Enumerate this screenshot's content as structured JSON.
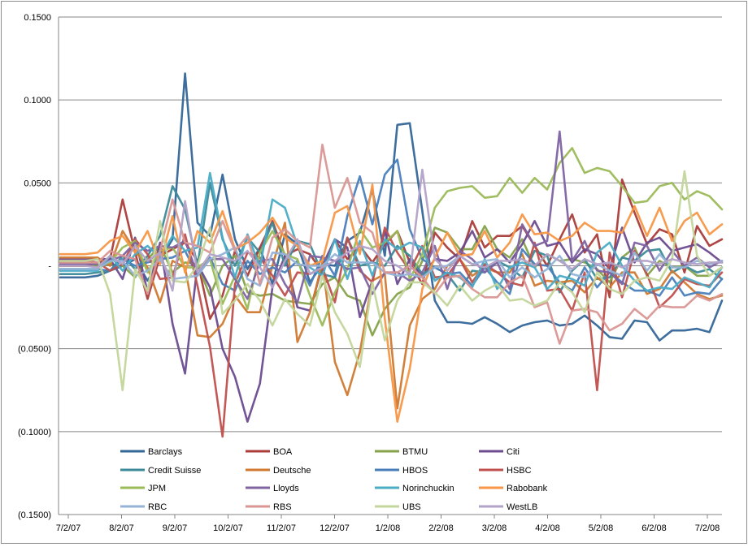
{
  "chart_data": {
    "type": "line",
    "title": "",
    "xlabel": "",
    "ylabel": "",
    "ylim": [
      -0.15,
      0.15
    ],
    "ytick_values": [
      0.15,
      0.1,
      0.05,
      0,
      -0.05,
      -0.1,
      -0.15
    ],
    "ytick_labels": [
      "0.1500",
      "0.1000",
      "0.0500",
      "-",
      "(0.0500)",
      "(0.1000)",
      "(0.1500)"
    ],
    "x_start": "7/2/07",
    "x_end": "7/28/08",
    "xtick_labels": [
      "7/2/07",
      "8/2/07",
      "9/2/07",
      "10/2/07",
      "11/2/07",
      "12/2/07",
      "1/2/08",
      "2/2/08",
      "3/2/08",
      "4/2/08",
      "5/2/08",
      "6/2/08",
      "7/2/08"
    ],
    "grid": "horizontal",
    "legend_placement": "bottom",
    "series": [
      {
        "name": "Barclays",
        "color": "#336699",
        "values": [
          -0.007,
          -0.007,
          -0.007,
          -0.006,
          -0.003,
          0.0,
          0.004,
          -0.009,
          0.004,
          0.016,
          0.116,
          0.026,
          0.018,
          0.055,
          0.016,
          -0.002,
          0.011,
          -0.011,
          0.019,
          0.013,
          -0.01,
          0.001,
          0.0,
          0.015,
          0.02,
          0.046,
          0.006,
          0.085,
          0.086,
          0.033,
          -0.021,
          -0.034,
          -0.034,
          -0.035,
          -0.031,
          -0.035,
          -0.04,
          -0.036,
          -0.034,
          -0.033,
          -0.036,
          -0.035,
          -0.03,
          -0.036,
          -0.043,
          -0.044,
          -0.033,
          -0.034,
          -0.045,
          -0.039,
          -0.039,
          -0.038,
          -0.04,
          -0.021
        ]
      },
      {
        "name": "BOA",
        "color": "#aa3d3a",
        "values": [
          0.003,
          0.003,
          0.003,
          0.002,
          0.004,
          0.04,
          0.008,
          -0.02,
          0.006,
          0.01,
          0.014,
          0.003,
          -0.032,
          -0.018,
          0.009,
          -0.006,
          0.011,
          0.027,
          0.006,
          0.01,
          0.007,
          -0.004,
          0.016,
          0.004,
          0.012,
          0.002,
          0.013,
          0.021,
          0.002,
          -0.011,
          0.02,
          0.011,
          0.004,
          0.027,
          0.011,
          0.018,
          0.018,
          0.024,
          0.012,
          0.0,
          0.016,
          0.031,
          0.008,
          0.019,
          -0.019,
          0.052,
          0.032,
          0.013,
          0.022,
          0.019,
          -0.004,
          0.024,
          0.012,
          0.016
        ]
      },
      {
        "name": "BTMU",
        "color": "#85a24a",
        "values": [
          0.0,
          0.0,
          0.0,
          0.0,
          0.001,
          0.0,
          -0.007,
          0.004,
          0.012,
          -0.004,
          0.002,
          0.001,
          -0.018,
          0.0,
          0.006,
          -0.016,
          -0.018,
          -0.017,
          -0.021,
          -0.022,
          -0.023,
          -0.011,
          -0.007,
          -0.018,
          -0.021,
          -0.042,
          -0.026,
          -0.017,
          -0.013,
          0.003,
          0.023,
          0.02,
          0.01,
          0.01,
          0.024,
          0.01,
          0.005,
          0.016,
          -0.001,
          0.007,
          0.003,
          0.004,
          0.002,
          -0.002,
          -0.01,
          0.005,
          0.011,
          -0.006,
          0.003,
          -0.001,
          0.0,
          -0.006,
          -0.006,
          -0.001
        ]
      },
      {
        "name": "Citi",
        "color": "#6c4b8f",
        "values": [
          0.004,
          0.004,
          0.004,
          0.004,
          0.004,
          -0.008,
          0.017,
          -0.016,
          0.014,
          -0.035,
          -0.065,
          0.001,
          -0.013,
          -0.05,
          -0.067,
          -0.094,
          -0.071,
          -0.013,
          0.006,
          -0.025,
          -0.027,
          0.0,
          0.016,
          0.011,
          -0.031,
          -0.009,
          0.021,
          -0.011,
          0.004,
          -0.007,
          0.004,
          0.003,
          0.008,
          0.021,
          0.005,
          0.01,
          0.002,
          0.013,
          0.027,
          0.012,
          0.014,
          0.002,
          0.01,
          0.007,
          -0.002,
          0.023,
          0.002,
          0.014,
          0.017,
          0.009,
          0.011,
          0.013,
          0.008,
          0.002
        ]
      },
      {
        "name": "Credit Suisse",
        "color": "#3d8b99",
        "values": [
          -0.005,
          -0.005,
          -0.005,
          -0.004,
          -0.003,
          0.006,
          -0.002,
          0.006,
          0.018,
          0.048,
          0.034,
          0.0,
          0.05,
          0.016,
          0.0,
          0.017,
          0.008,
          0.026,
          0.0,
          0.015,
          0.013,
          -0.005,
          -0.007,
          0.017,
          0.0,
          0.002,
          0.0,
          0.012,
          0.006,
          -0.005,
          -0.001,
          -0.005,
          -0.015,
          -0.003,
          -0.004,
          0.003,
          -0.001,
          -0.007,
          0.009,
          0.006,
          -0.016,
          -0.003,
          0.004,
          -0.008,
          -0.007,
          0.005,
          0.003,
          0.009,
          0.01,
          -0.004,
          0.0,
          -0.004,
          -0.002,
          -0.008
        ]
      },
      {
        "name": "Deutsche",
        "color": "#d07a31",
        "values": [
          0.005,
          0.005,
          0.005,
          0.005,
          0.0,
          0.021,
          0.009,
          -0.001,
          -0.022,
          0.003,
          -0.001,
          -0.042,
          -0.043,
          -0.035,
          -0.018,
          -0.028,
          -0.028,
          0.0,
          0.026,
          -0.046,
          -0.028,
          0.002,
          -0.058,
          -0.078,
          -0.052,
          -0.009,
          -0.005,
          -0.086,
          -0.036,
          -0.02,
          -0.014,
          0.0,
          0.004,
          -0.006,
          -0.001,
          -0.004,
          -0.004,
          0.007,
          -0.012,
          -0.009,
          -0.01,
          -0.009,
          -0.016,
          -0.007,
          -0.013,
          -0.004,
          -0.004,
          -0.017,
          -0.014,
          -0.003,
          -0.01,
          -0.017,
          -0.02,
          -0.018
        ]
      },
      {
        "name": "HBOS",
        "color": "#4a7ebb",
        "values": [
          -0.002,
          -0.002,
          -0.002,
          -0.002,
          -0.003,
          0.004,
          0.0,
          0.002,
          0.004,
          0.005,
          0.009,
          -0.006,
          0.005,
          -0.011,
          -0.015,
          0.003,
          -0.005,
          -0.001,
          -0.004,
          0.003,
          -0.012,
          0.006,
          -0.006,
          0.03,
          0.054,
          0.025,
          0.055,
          0.064,
          0.022,
          0.004,
          -0.001,
          -0.005,
          -0.004,
          -0.012,
          -0.001,
          -0.01,
          -0.017,
          0.01,
          0.001,
          0.0,
          -0.01,
          -0.015,
          -0.001,
          -0.013,
          -0.004,
          -0.01,
          -0.015,
          -0.015,
          -0.018,
          -0.007,
          -0.018,
          -0.016,
          -0.017,
          -0.008
        ]
      },
      {
        "name": "HSBC",
        "color": "#c0504d",
        "values": [
          0.0,
          0.0,
          0.0,
          0.002,
          -0.003,
          0.001,
          0.016,
          0.007,
          -0.008,
          -0.007,
          0.019,
          -0.012,
          -0.049,
          -0.103,
          -0.011,
          0.008,
          0.005,
          -0.006,
          -0.018,
          -0.004,
          -0.005,
          -0.001,
          -0.022,
          0.017,
          -0.003,
          -0.01,
          0.023,
          0.008,
          -0.003,
          0.012,
          -0.007,
          -0.006,
          0.004,
          -0.01,
          0.001,
          -0.004,
          -0.01,
          -0.012,
          0.014,
          -0.015,
          -0.014,
          -0.027,
          -0.004,
          -0.075,
          0.008,
          -0.019,
          0.009,
          -0.005,
          -0.025,
          -0.018,
          -0.008,
          -0.011,
          -0.012,
          -0.004
        ]
      },
      {
        "name": "JPM",
        "color": "#9bbb59",
        "values": [
          0.002,
          0.002,
          0.002,
          0.001,
          0.002,
          0.011,
          0.015,
          -0.004,
          0.009,
          0.011,
          -0.001,
          -0.001,
          0.004,
          -0.023,
          -0.006,
          -0.026,
          0.008,
          0.021,
          0.007,
          0.004,
          -0.018,
          -0.036,
          -0.016,
          -0.002,
          0.022,
          0.011,
          0.014,
          0.021,
          -0.008,
          0.007,
          0.035,
          0.045,
          0.047,
          0.048,
          0.041,
          0.042,
          0.053,
          0.044,
          0.053,
          0.046,
          0.062,
          0.071,
          0.056,
          0.059,
          0.057,
          0.048,
          0.038,
          0.039,
          0.048,
          0.05,
          0.04,
          0.045,
          0.042,
          0.034
        ]
      },
      {
        "name": "Lloyds",
        "color": "#8064a2",
        "values": [
          0.001,
          0.001,
          0.001,
          0.001,
          0.003,
          0.006,
          0.014,
          0.009,
          0.012,
          0.011,
          0.015,
          -0.005,
          0.004,
          0.004,
          -0.008,
          -0.02,
          0.003,
          0.004,
          -0.011,
          -0.022,
          0.006,
          0.005,
          0.003,
          -0.002,
          -0.001,
          -0.017,
          -0.004,
          -0.004,
          -0.009,
          -0.004,
          0.012,
          -0.014,
          0.009,
          0.004,
          -0.004,
          0.002,
          -0.014,
          0.025,
          0.012,
          0.015,
          0.081,
          0.003,
          0.015,
          -0.003,
          -0.004,
          -0.011,
          0.014,
          0.012,
          -0.003,
          0.009,
          0.0,
          0.005,
          -0.001,
          0.003
        ]
      },
      {
        "name": "Norinchuckin",
        "color": "#4bacc6",
        "values": [
          -0.003,
          -0.003,
          -0.003,
          -0.003,
          0.006,
          -0.003,
          0.007,
          0.012,
          0.005,
          0.018,
          0.009,
          0.011,
          0.056,
          0.017,
          -0.007,
          0.019,
          -0.001,
          0.04,
          0.035,
          0.012,
          -0.001,
          -0.006,
          0.016,
          -0.008,
          0.015,
          -0.006,
          0.016,
          0.01,
          0.014,
          0.011,
          -0.009,
          -0.004,
          -0.007,
          -0.013,
          0.004,
          -0.014,
          -0.001,
          0.002,
          -0.001,
          -0.014,
          -0.006,
          -0.008,
          -0.012,
          0.008,
          0.014,
          0.0,
          -0.009,
          -0.015,
          -0.013,
          -0.014,
          -0.007,
          -0.01,
          -0.013,
          -0.001
        ]
      },
      {
        "name": "Rabobank",
        "color": "#f79646",
        "values": [
          0.007,
          0.007,
          0.007,
          0.008,
          0.015,
          0.018,
          0.008,
          0.021,
          0.001,
          0.03,
          -0.004,
          0.021,
          0.014,
          0.033,
          0.01,
          0.014,
          0.02,
          0.029,
          0.017,
          0.012,
          0.0,
          0.003,
          0.032,
          0.036,
          0.007,
          0.049,
          -0.032,
          -0.094,
          -0.062,
          -0.014,
          0.005,
          0.02,
          0.006,
          0.007,
          0.021,
          0.005,
          0.014,
          0.031,
          0.019,
          0.02,
          0.015,
          0.018,
          0.026,
          0.021,
          0.021,
          0.02,
          0.036,
          0.018,
          0.035,
          0.015,
          0.027,
          0.032,
          0.019,
          0.025
        ]
      },
      {
        "name": "RBC",
        "color": "#95b3d7",
        "values": [
          -0.002,
          -0.002,
          -0.002,
          -0.002,
          0.003,
          0.003,
          -0.006,
          -0.003,
          0.004,
          -0.008,
          -0.007,
          -0.006,
          0.004,
          0.007,
          0.011,
          -0.008,
          -0.012,
          0.008,
          0.007,
          0.001,
          0.0,
          0.0,
          0.007,
          0.002,
          0.002,
          0.002,
          -0.004,
          -0.006,
          -0.005,
          -0.007,
          -0.001,
          0.0,
          0.006,
          0.001,
          0.003,
          0.004,
          -0.007,
          -0.001,
          -0.007,
          -0.002,
          0.006,
          -0.005,
          -0.007,
          0.001,
          -0.003,
          -0.006,
          0.008,
          -0.003,
          0.007,
          -0.001,
          -0.001,
          0.003,
          0.001,
          0.003
        ]
      },
      {
        "name": "RBS",
        "color": "#d99694",
        "values": [
          0.002,
          0.002,
          0.002,
          0.002,
          0.009,
          0.006,
          0.004,
          -0.017,
          0.009,
          0.04,
          0.014,
          0.012,
          0.008,
          0.027,
          0.009,
          0.018,
          -0.011,
          0.017,
          0.022,
          0.015,
          0.011,
          0.073,
          0.035,
          0.053,
          0.026,
          0.02,
          -0.004,
          -0.004,
          0.0,
          -0.007,
          -0.017,
          -0.007,
          -0.006,
          -0.014,
          -0.019,
          -0.019,
          -0.01,
          -0.006,
          -0.025,
          -0.022,
          -0.047,
          -0.027,
          -0.026,
          -0.028,
          -0.039,
          -0.035,
          -0.026,
          -0.032,
          -0.024,
          -0.025,
          -0.025,
          -0.018,
          -0.021,
          -0.017
        ]
      },
      {
        "name": "UBS",
        "color": "#c3d69b",
        "values": [
          0.003,
          0.003,
          0.003,
          0.004,
          -0.017,
          -0.075,
          -0.002,
          -0.015,
          0.027,
          -0.009,
          -0.01,
          0.0,
          0.023,
          -0.029,
          -0.021,
          -0.011,
          -0.021,
          -0.036,
          -0.02,
          -0.029,
          -0.036,
          -0.006,
          -0.028,
          -0.041,
          -0.061,
          -0.01,
          -0.045,
          -0.021,
          -0.01,
          -0.01,
          -0.016,
          -0.024,
          -0.012,
          -0.021,
          -0.015,
          -0.011,
          -0.021,
          -0.02,
          -0.024,
          -0.021,
          -0.01,
          -0.016,
          -0.028,
          -0.004,
          -0.014,
          -0.017,
          -0.009,
          -0.007,
          -0.009,
          0.004,
          0.057,
          0.006,
          -0.006,
          -0.001
        ]
      },
      {
        "name": "WestLB",
        "color": "#b3a2c7",
        "values": [
          0.0,
          0.0,
          0.0,
          -0.001,
          0.006,
          0.001,
          0.012,
          0.003,
          0.008,
          -0.015,
          0.039,
          -0.004,
          0.007,
          0.005,
          0.003,
          0.009,
          -0.001,
          -0.013,
          0.003,
          0.016,
          -0.005,
          -0.001,
          0.003,
          0.008,
          0.012,
          0.01,
          0.003,
          0.0,
          -0.005,
          0.058,
          0.004,
          -0.003,
          0.006,
          0.001,
          -0.001,
          0.003,
          0.003,
          0.004,
          0.0,
          0.007,
          0.003,
          -0.002,
          0.004,
          0.001,
          0.002,
          -0.001,
          0.003,
          0.003,
          0.001,
          0.004,
          0.002,
          0.001,
          0.002,
          0.002
        ]
      }
    ]
  }
}
